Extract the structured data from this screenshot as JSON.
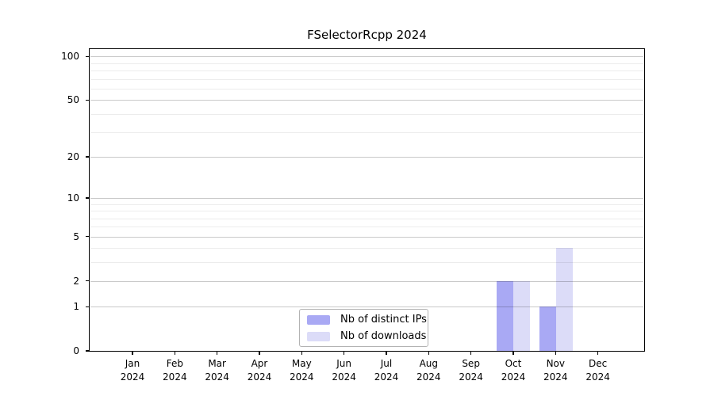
{
  "title": "FSelectorRcpp 2024",
  "legend": {
    "items": [
      {
        "label": "Nb of distinct IPs",
        "color": "#a9a9f4"
      },
      {
        "label": "Nb of downloads",
        "color": "#dcdcf8"
      }
    ]
  },
  "chart_data": {
    "type": "bar",
    "title": "FSelectorRcpp 2024",
    "categories": [
      "Jan 2024",
      "Feb 2024",
      "Mar 2024",
      "Apr 2024",
      "May 2024",
      "Jun 2024",
      "Jul 2024",
      "Aug 2024",
      "Sep 2024",
      "Oct 2024",
      "Nov 2024",
      "Dec 2024"
    ],
    "series": [
      {
        "name": "Nb of distinct IPs",
        "color": "#a9a9f4",
        "values": [
          0,
          0,
          0,
          0,
          0,
          0,
          0,
          0,
          0,
          2,
          1,
          0
        ]
      },
      {
        "name": "Nb of downloads",
        "color": "#dcdcf8",
        "values": [
          0,
          0,
          0,
          0,
          0,
          0,
          0,
          0,
          0,
          2,
          4,
          0
        ]
      }
    ],
    "xlabel": "",
    "ylabel": "",
    "yscale": "log1p",
    "yticks": [
      0,
      1,
      2,
      5,
      10,
      20,
      50,
      100
    ],
    "minor_yticks": [
      3,
      4,
      6,
      7,
      8,
      9,
      30,
      40,
      60,
      70,
      80,
      90
    ],
    "ylim": [
      0,
      113
    ],
    "grid": "horizontal",
    "legend_position": "inside-bottom-center"
  }
}
